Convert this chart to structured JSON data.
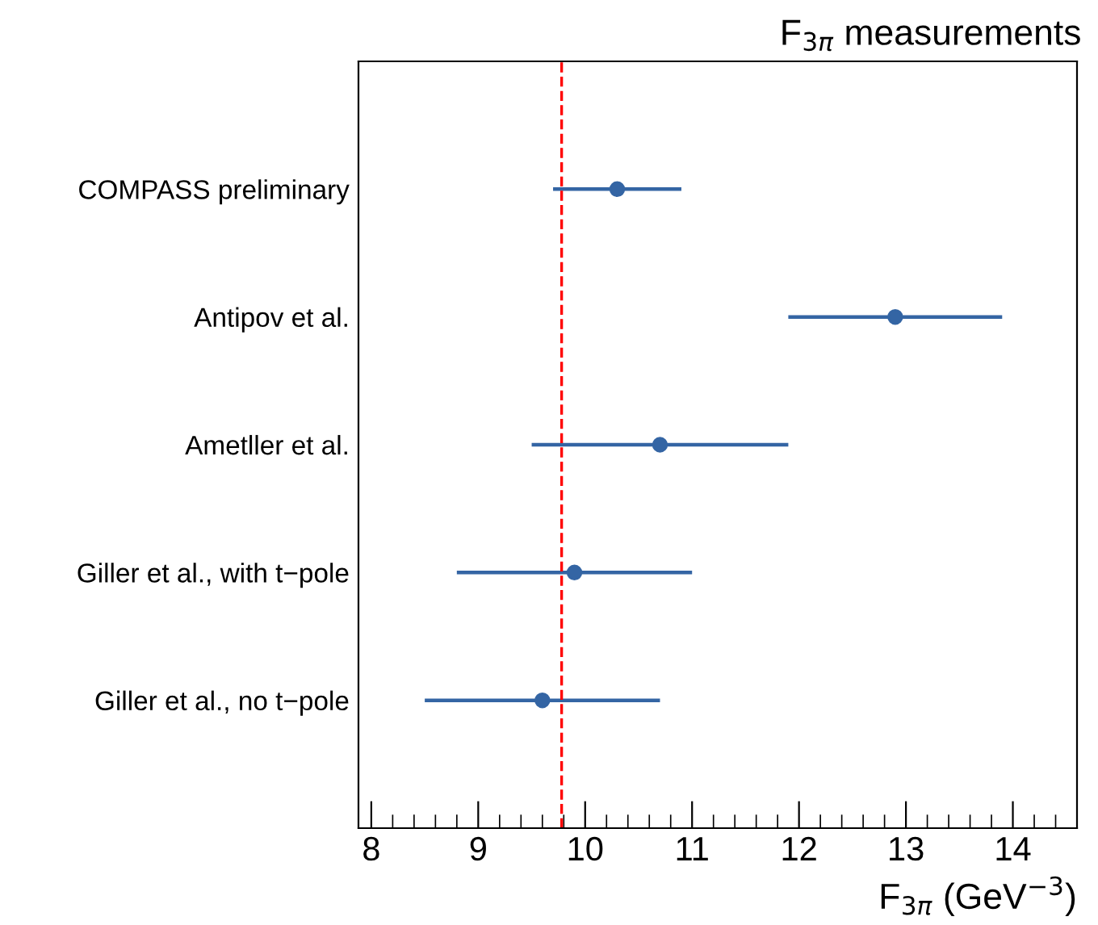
{
  "chart_data": {
    "type": "scatter",
    "orientation": "horizontal",
    "title": "F$_{3π}$ measurements",
    "xlabel": "F$_{3π}$ (GeV$^{−3}$)",
    "categories": [
      "COMPASS preliminary",
      "Antipov et al.",
      "Ametller et al.",
      "Giller et al., with t−pole",
      "Giller et al., no t−pole"
    ],
    "series": [
      {
        "color": "#3465a4",
        "values": [
          10.3,
          12.9,
          10.7,
          9.9,
          9.6
        ],
        "errors": [
          [
            9.7,
            10.9
          ],
          [
            11.9,
            13.9
          ],
          [
            9.5,
            11.9
          ],
          [
            8.8,
            11.0
          ],
          [
            8.5,
            10.7
          ]
        ]
      }
    ],
    "xlim": [
      7.88,
      14.6
    ],
    "xticks": [
      8,
      9,
      10,
      11,
      12,
      13,
      14
    ],
    "marker": "circle",
    "ref_lines": [
      {
        "axis": "x",
        "value": 9.78,
        "color": "#ff0000",
        "line_style": "dashed"
      }
    ],
    "grid": false,
    "legend": false
  }
}
